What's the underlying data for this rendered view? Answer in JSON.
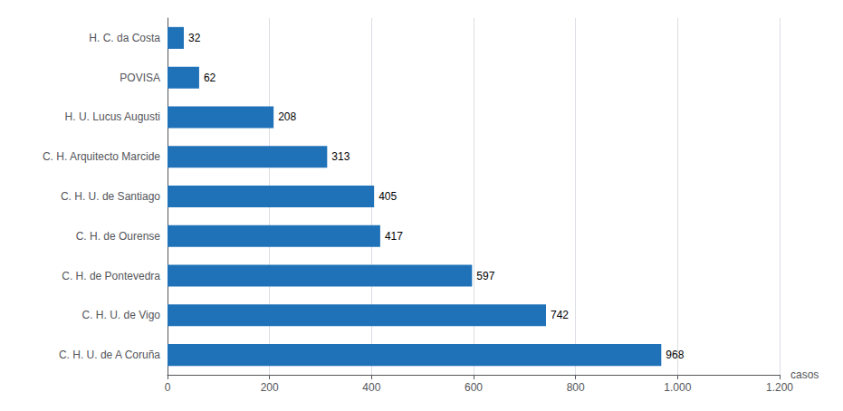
{
  "chart_data": {
    "type": "bar",
    "orientation": "horizontal",
    "categories": [
      "C. H. U. de A Coruña",
      "C. H. U. de Vigo",
      "C. H. de Pontevedra",
      "C. H. de Ourense",
      "C. H. U. de Santiago",
      "C. H. Arquitecto Marcide",
      "H. U. Lucus Augusti",
      "POVISA",
      "H. C. da Costa"
    ],
    "values": [
      968,
      742,
      597,
      417,
      405,
      313,
      208,
      62,
      32
    ],
    "color": "#1F72B8",
    "xlabel": "casos",
    "xlim": [
      0,
      1200
    ],
    "xticks": [
      0,
      200,
      400,
      600,
      800,
      {
        "value": 1000,
        "label": "1.000"
      },
      {
        "value": 1200,
        "label": "1.200"
      }
    ],
    "grid": true,
    "data_labels": true
  }
}
